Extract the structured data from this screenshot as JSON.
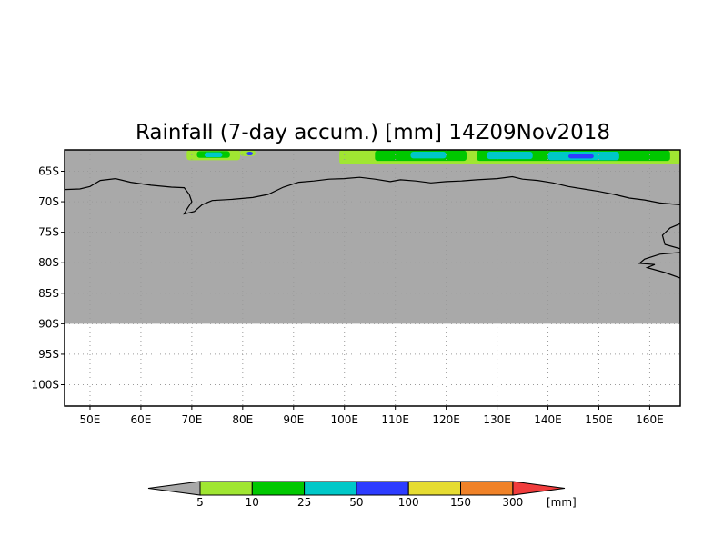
{
  "title": "Rainfall (7-day accum.) [mm] 14Z09Nov2018",
  "colors": {
    "land_mask": "#a9a9a9",
    "no_data": "#ffffff",
    "coastline": "#000000",
    "grid": "#9a9a9a"
  },
  "map": {
    "lon_range": [
      45,
      166
    ],
    "lat_range": [
      -103.5,
      -61.5
    ],
    "land_mask_lat_limit": -90,
    "grid": true,
    "lat_labels": [
      {
        "lat": -65,
        "label": "65S"
      },
      {
        "lat": -70,
        "label": "70S"
      },
      {
        "lat": -75,
        "label": "75S"
      },
      {
        "lat": -80,
        "label": "80S"
      },
      {
        "lat": -85,
        "label": "85S"
      },
      {
        "lat": -90,
        "label": "90S"
      },
      {
        "lat": -95,
        "label": "95S"
      },
      {
        "lat": -100,
        "label": "100S"
      }
    ],
    "lon_labels": [
      {
        "lon": 50,
        "label": "50E"
      },
      {
        "lon": 60,
        "label": "60E"
      },
      {
        "lon": 70,
        "label": "70E"
      },
      {
        "lon": 80,
        "label": "80E"
      },
      {
        "lon": 90,
        "label": "90E"
      },
      {
        "lon": 100,
        "label": "100E"
      },
      {
        "lon": 110,
        "label": "110E"
      },
      {
        "lon": 120,
        "label": "120E"
      },
      {
        "lon": 130,
        "label": "130E"
      },
      {
        "lon": 140,
        "label": "140E"
      },
      {
        "lon": 150,
        "label": "150E"
      },
      {
        "lon": 160,
        "label": "160E"
      }
    ],
    "coastline": [
      [
        45,
        -68.0
      ],
      [
        48,
        -67.9
      ],
      [
        50,
        -67.5
      ],
      [
        52,
        -66.5
      ],
      [
        55,
        -66.2
      ],
      [
        58,
        -66.8
      ],
      [
        62,
        -67.3
      ],
      [
        66,
        -67.6
      ],
      [
        68.5,
        -67.7
      ],
      [
        69.5,
        -68.8
      ],
      [
        70,
        -70.0
      ],
      [
        69.2,
        -71.0
      ],
      [
        68.5,
        -72.0
      ],
      [
        70.5,
        -71.6
      ],
      [
        72,
        -70.5
      ],
      [
        74,
        -69.8
      ],
      [
        78,
        -69.6
      ],
      [
        82,
        -69.3
      ],
      [
        85,
        -68.8
      ],
      [
        88,
        -67.6
      ],
      [
        91,
        -66.8
      ],
      [
        94,
        -66.6
      ],
      [
        97,
        -66.3
      ],
      [
        100,
        -66.2
      ],
      [
        103,
        -66.0
      ],
      [
        106,
        -66.3
      ],
      [
        109,
        -66.7
      ],
      [
        111,
        -66.4
      ],
      [
        114,
        -66.6
      ],
      [
        117,
        -66.9
      ],
      [
        120,
        -66.7
      ],
      [
        123,
        -66.6
      ],
      [
        126,
        -66.4
      ],
      [
        130,
        -66.2
      ],
      [
        133,
        -65.9
      ],
      [
        135,
        -66.3
      ],
      [
        138,
        -66.5
      ],
      [
        141,
        -66.9
      ],
      [
        144,
        -67.5
      ],
      [
        147,
        -67.9
      ],
      [
        150,
        -68.3
      ],
      [
        153,
        -68.8
      ],
      [
        156,
        -69.4
      ],
      [
        159,
        -69.7
      ],
      [
        162,
        -70.2
      ],
      [
        166,
        -70.5
      ]
    ],
    "coastline_east": [
      [
        166,
        -73.6
      ],
      [
        164,
        -74.3
      ],
      [
        162.5,
        -75.5
      ],
      [
        163,
        -77.0
      ],
      [
        166,
        -77.7
      ]
    ],
    "ice_shelf_edge": [
      [
        166,
        -78.3
      ],
      [
        162,
        -78.6
      ],
      [
        159,
        -79.4
      ],
      [
        158,
        -80.1
      ],
      [
        161,
        -80.3
      ],
      [
        159.5,
        -80.8
      ],
      [
        163,
        -81.6
      ],
      [
        166,
        -82.5
      ]
    ],
    "rainfall_patches": [
      {
        "lon": [
          69.0,
          79.5
        ],
        "lat": [
          -61.5,
          -63.2
        ],
        "mm": 5
      },
      {
        "lon": [
          71.0,
          77.5
        ],
        "lat": [
          -61.7,
          -62.8
        ],
        "mm": 10
      },
      {
        "lon": [
          72.5,
          76.0
        ],
        "lat": [
          -61.9,
          -62.7
        ],
        "mm": 25
      },
      {
        "lon": [
          79.5,
          82.5
        ],
        "lat": [
          -61.5,
          -62.5
        ],
        "mm": 5
      },
      {
        "lon": [
          80.8,
          82.0
        ],
        "lat": [
          -61.8,
          -62.4
        ],
        "mm": 50
      },
      {
        "lon": [
          99.0,
          166.0
        ],
        "lat": [
          -61.5,
          -63.8
        ],
        "mm": 5
      },
      {
        "lon": [
          106.0,
          124.0
        ],
        "lat": [
          -61.6,
          -63.3
        ],
        "mm": 10
      },
      {
        "lon": [
          126.0,
          164.0
        ],
        "lat": [
          -61.6,
          -63.3
        ],
        "mm": 10
      },
      {
        "lon": [
          113.0,
          120.0
        ],
        "lat": [
          -61.8,
          -62.9
        ],
        "mm": 25
      },
      {
        "lon": [
          128.0,
          137.0
        ],
        "lat": [
          -61.8,
          -63.0
        ],
        "mm": 25
      },
      {
        "lon": [
          140.0,
          154.0
        ],
        "lat": [
          -61.8,
          -63.2
        ],
        "mm": 25
      },
      {
        "lon": [
          144.0,
          149.0
        ],
        "lat": [
          -62.2,
          -62.9
        ],
        "mm": 50
      }
    ]
  },
  "legend": {
    "unit_label": "[mm]",
    "under_color": "#a9a9a9",
    "over_color": "#f03c3c",
    "bins": [
      {
        "color": "#a0e632",
        "label": "5"
      },
      {
        "color": "#00c800",
        "label": "10"
      },
      {
        "color": "#00c8c8",
        "label": "25"
      },
      {
        "color": "#2d3cff",
        "label": "50"
      },
      {
        "color": "#e6dc32",
        "label": "100"
      },
      {
        "color": "#f08228",
        "label": "150"
      },
      {
        "label": "300"
      }
    ]
  }
}
